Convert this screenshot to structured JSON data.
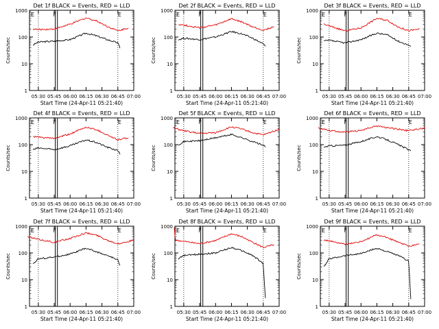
{
  "xlabel": "Start Time (24-Apr-11 05:21:40)",
  "ylabel": "Counts/sec",
  "x_ticks": [
    "05:30",
    "05:45",
    "06:00",
    "06:15",
    "06:30",
    "06:45",
    "07:00"
  ],
  "y_ticks": [
    "1",
    "10",
    "100",
    "1000"
  ],
  "colors": {
    "events": "#000000",
    "lld": "#e00000"
  },
  "chart_data": [
    {
      "type": "line",
      "title": "Det 1f BLACK = Events, RED = LLD",
      "markers": [
        "F",
        "E"
      ],
      "xlim": [
        "05:21:40",
        "07:00"
      ],
      "ylim": [
        1,
        1000
      ],
      "yscale": "log",
      "series": [
        {
          "name": "Events",
          "x": [
            "05:25",
            "05:30",
            "05:45",
            "06:00",
            "06:15",
            "06:25",
            "06:35",
            "06:45",
            "06:47"
          ],
          "values": [
            50,
            65,
            70,
            80,
            140,
            110,
            80,
            60,
            40
          ]
        },
        {
          "name": "LLD",
          "x": [
            "05:25",
            "05:30",
            "05:45",
            "06:00",
            "06:15",
            "06:25",
            "06:35",
            "06:45",
            "06:55"
          ],
          "values": [
            200,
            190,
            200,
            300,
            520,
            400,
            250,
            170,
            220
          ]
        }
      ]
    },
    {
      "type": "line",
      "title": "Det 2f BLACK = Events, RED = LLD",
      "markers": [
        "F",
        "E"
      ],
      "xlim": [
        "05:21:40",
        "07:00"
      ],
      "ylim": [
        1,
        1000
      ],
      "yscale": "log",
      "series": [
        {
          "name": "Events",
          "x": [
            "05:25",
            "05:30",
            "05:45",
            "06:00",
            "06:15",
            "06:25",
            "06:35",
            "06:45",
            "06:47"
          ],
          "values": [
            80,
            90,
            80,
            100,
            160,
            130,
            90,
            55,
            45
          ]
        },
        {
          "name": "LLD",
          "x": [
            "05:25",
            "05:30",
            "05:45",
            "06:00",
            "06:15",
            "06:25",
            "06:35",
            "06:45",
            "06:55"
          ],
          "values": [
            300,
            280,
            220,
            280,
            480,
            360,
            240,
            180,
            240
          ]
        }
      ]
    },
    {
      "type": "line",
      "title": "Det 3f BLACK = Events, RED = LLD",
      "markers": [
        "F",
        "E"
      ],
      "xlim": [
        "05:21:40",
        "07:00"
      ],
      "ylim": [
        1,
        1000
      ],
      "yscale": "log",
      "series": [
        {
          "name": "Events",
          "x": [
            "05:25",
            "05:30",
            "05:45",
            "06:00",
            "06:15",
            "06:25",
            "06:35",
            "06:45",
            "06:47"
          ],
          "values": [
            70,
            75,
            60,
            80,
            140,
            120,
            70,
            50,
            42
          ]
        },
        {
          "name": "LLD",
          "x": [
            "05:25",
            "05:30",
            "05:45",
            "06:00",
            "06:15",
            "06:25",
            "06:35",
            "06:45",
            "06:55"
          ],
          "values": [
            300,
            260,
            170,
            220,
            500,
            420,
            240,
            170,
            200
          ]
        }
      ]
    },
    {
      "type": "line",
      "title": "Det 4f BLACK = Events, RED = LLD",
      "markers": [
        "F",
        "E"
      ],
      "xlim": [
        "05:21:40",
        "07:00"
      ],
      "ylim": [
        1,
        1000
      ],
      "yscale": "log",
      "series": [
        {
          "name": "Events",
          "x": [
            "05:25",
            "05:30",
            "05:45",
            "06:00",
            "06:15",
            "06:25",
            "06:35",
            "06:45",
            "06:47"
          ],
          "values": [
            65,
            75,
            65,
            90,
            150,
            120,
            80,
            60,
            45
          ]
        },
        {
          "name": "LLD",
          "x": [
            "05:25",
            "05:30",
            "05:45",
            "06:00",
            "06:15",
            "06:25",
            "06:35",
            "06:45",
            "06:55"
          ],
          "values": [
            200,
            190,
            170,
            250,
            450,
            360,
            230,
            150,
            180
          ]
        }
      ]
    },
    {
      "type": "line",
      "title": "Det 5f BLACK = Events, RED = LLD",
      "markers": [
        "F",
        "E"
      ],
      "xlim": [
        "05:21:40",
        "07:00"
      ],
      "ylim": [
        1,
        1000
      ],
      "yscale": "log",
      "series": [
        {
          "name": "Events",
          "x": [
            "05:25",
            "05:30",
            "05:45",
            "06:00",
            "06:15",
            "06:25",
            "06:35",
            "06:45",
            "06:47"
          ],
          "values": [
            100,
            130,
            140,
            180,
            240,
            180,
            130,
            95,
            80
          ]
        },
        {
          "name": "LLD",
          "x": [
            "05:20",
            "05:30",
            "05:45",
            "06:00",
            "06:15",
            "06:25",
            "06:35",
            "06:45",
            "07:00"
          ],
          "values": [
            420,
            330,
            260,
            280,
            460,
            380,
            280,
            230,
            380
          ]
        }
      ]
    },
    {
      "type": "line",
      "title": "Det 6f BLACK = Events, RED = LLD",
      "markers": [
        "F",
        "E"
      ],
      "xlim": [
        "05:21:40",
        "07:00"
      ],
      "ylim": [
        1,
        1000
      ],
      "yscale": "log",
      "series": [
        {
          "name": "Events",
          "x": [
            "05:25",
            "05:30",
            "05:45",
            "06:00",
            "06:15",
            "06:25",
            "06:35",
            "06:45",
            "06:47"
          ],
          "values": [
            80,
            90,
            95,
            130,
            200,
            150,
            100,
            65,
            55
          ]
        },
        {
          "name": "LLD",
          "x": [
            "05:20",
            "05:30",
            "05:45",
            "06:00",
            "06:15",
            "06:25",
            "06:35",
            "06:45",
            "07:00"
          ],
          "values": [
            420,
            340,
            290,
            340,
            500,
            430,
            380,
            330,
            420
          ]
        }
      ]
    },
    {
      "type": "line",
      "title": "Det 7f BLACK = Events, RED = LLD",
      "markers": [
        "F",
        "E"
      ],
      "xlim": [
        "05:21:40",
        "07:00"
      ],
      "ylim": [
        1,
        1000
      ],
      "yscale": "log",
      "series": [
        {
          "name": "Events",
          "x": [
            "05:25",
            "05:30",
            "05:45",
            "06:00",
            "06:15",
            "06:25",
            "06:35",
            "06:45",
            "06:47"
          ],
          "values": [
            40,
            60,
            70,
            90,
            150,
            110,
            80,
            55,
            35
          ]
        },
        {
          "name": "LLD",
          "x": [
            "05:20",
            "05:30",
            "05:45",
            "06:00",
            "06:15",
            "06:25",
            "06:35",
            "06:45",
            "07:00"
          ],
          "values": [
            400,
            320,
            250,
            350,
            560,
            460,
            300,
            220,
            300
          ]
        }
      ]
    },
    {
      "type": "line",
      "title": "Det 8f BLACK = Events, RED = LLD",
      "markers": [
        "F",
        "E"
      ],
      "xlim": [
        "05:21:40",
        "07:00"
      ],
      "ylim": [
        1,
        1000
      ],
      "yscale": "log",
      "series": [
        {
          "name": "Events",
          "x": [
            "05:25",
            "05:30",
            "05:45",
            "06:00",
            "06:15",
            "06:25",
            "06:35",
            "06:45",
            "06:47"
          ],
          "values": [
            60,
            80,
            90,
            100,
            160,
            120,
            80,
            40,
            2
          ]
        },
        {
          "name": "LLD",
          "x": [
            "05:21",
            "05:22",
            "05:30",
            "05:45",
            "06:00",
            "06:15",
            "06:25",
            "06:35",
            "06:45",
            "06:55"
          ],
          "values": [
            900,
            300,
            270,
            220,
            290,
            520,
            400,
            250,
            160,
            200
          ]
        }
      ]
    },
    {
      "type": "line",
      "title": "Det 9f BLACK = Events, RED = LLD",
      "markers": [
        "F",
        "E"
      ],
      "xlim": [
        "05:21:40",
        "07:00"
      ],
      "ylim": [
        1,
        1000
      ],
      "yscale": "log",
      "series": [
        {
          "name": "Events",
          "x": [
            "05:25",
            "05:30",
            "05:45",
            "06:00",
            "06:15",
            "06:25",
            "06:35",
            "06:45",
            "06:47"
          ],
          "values": [
            30,
            60,
            80,
            95,
            150,
            110,
            80,
            50,
            2
          ]
        },
        {
          "name": "LLD",
          "x": [
            "05:25",
            "05:30",
            "05:45",
            "06:00",
            "06:15",
            "06:25",
            "06:35",
            "06:45",
            "06:55"
          ],
          "values": [
            300,
            280,
            210,
            260,
            480,
            370,
            250,
            180,
            220
          ]
        }
      ]
    }
  ]
}
